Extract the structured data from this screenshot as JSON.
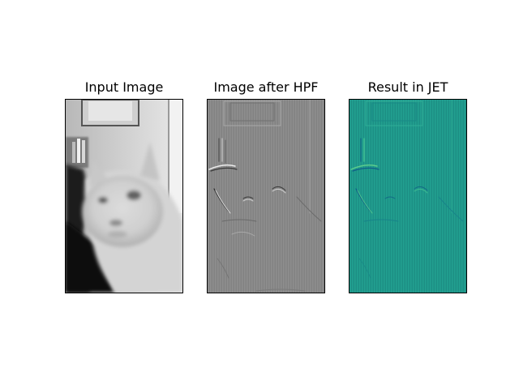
{
  "figure": {
    "panels": [
      {
        "title": "Input Image"
      },
      {
        "title": "Image after HPF"
      },
      {
        "title": "Result in JET"
      }
    ]
  },
  "colors": {
    "background": "#ffffff",
    "axes_frame": "#000000",
    "hpf_gray": "#888888",
    "jet_teal": "#1e9a8a"
  }
}
